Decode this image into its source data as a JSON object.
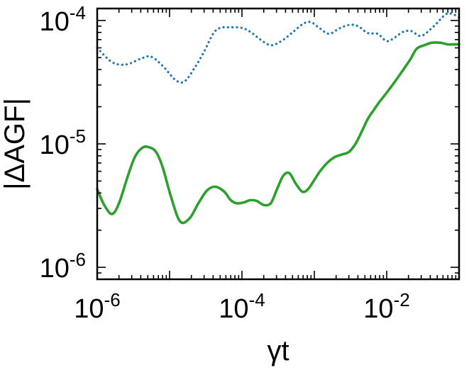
{
  "chart_data": {
    "type": "line",
    "title": "",
    "xlabel": "γt",
    "ylabel": "|ΔAGF|",
    "xscale": "log",
    "yscale": "log",
    "xlim": [
      1e-06,
      0.1
    ],
    "ylim": [
      8e-07,
      0.000125
    ],
    "grid": false,
    "legend": "none",
    "x_ticks": [
      {
        "value": 1e-06,
        "base": "10",
        "exp": "-6"
      },
      {
        "value": 0.0001,
        "base": "10",
        "exp": "-4"
      },
      {
        "value": 0.01,
        "base": "10",
        "exp": "-2"
      }
    ],
    "y_ticks": [
      {
        "value": 1e-06,
        "base": "10",
        "exp": "-6"
      },
      {
        "value": 1e-05,
        "base": "10",
        "exp": "-5"
      },
      {
        "value": 0.0001,
        "base": "10",
        "exp": "-4"
      }
    ],
    "series": [
      {
        "style": "dotted",
        "color": "#1f77b4",
        "x": [
          1e-06,
          1.6e-06,
          2.5e-06,
          4e-06,
          5.5e-06,
          8e-06,
          1.2e-05,
          1.6e-05,
          2.2e-05,
          3e-05,
          4e-05,
          5e-05,
          7e-05,
          0.0001,
          0.00013,
          0.00018,
          0.00025,
          0.00035,
          0.0005,
          0.0007,
          0.0009,
          0.0012,
          0.0016,
          0.0022,
          0.003,
          0.004,
          0.0055,
          0.0075,
          0.01,
          0.013,
          0.017,
          0.022,
          0.03,
          0.045,
          0.065,
          0.08,
          0.1
        ],
        "y": [
          6e-05,
          4.6e-05,
          4.4e-05,
          4.9e-05,
          5.1e-05,
          4.3e-05,
          3.3e-05,
          3.2e-05,
          4.1e-05,
          5.6e-05,
          7.8e-05,
          8.7e-05,
          8.8e-05,
          8.7e-05,
          8.1e-05,
          7e-05,
          6.3e-05,
          6.8e-05,
          8e-05,
          9.4e-05,
          9.7e-05,
          8.6e-05,
          7.8e-05,
          8.6e-05,
          9.2e-05,
          9e-05,
          7.9e-05,
          7.8e-05,
          6.8e-05,
          7.3e-05,
          8.1e-05,
          8.2e-05,
          7.5e-05,
          9e-05,
          0.000112,
          0.000113,
          0.000106
        ]
      },
      {
        "style": "solid",
        "color": "#2ca02c",
        "x": [
          1e-06,
          1.25e-06,
          1.6e-06,
          2e-06,
          2.6e-06,
          3.3e-06,
          4.2e-06,
          5.2e-06,
          6.5e-06,
          8e-06,
          1.05e-05,
          1.4e-05,
          1.9e-05,
          2.5e-05,
          3.3e-05,
          4.3e-05,
          5.7e-05,
          7e-05,
          8.5e-05,
          0.000105,
          0.00013,
          0.00016,
          0.0002,
          0.00025,
          0.0003,
          0.00037,
          0.00045,
          0.00055,
          0.00068,
          0.00082,
          0.001,
          0.0012,
          0.0015,
          0.0019,
          0.0024,
          0.003,
          0.0037,
          0.0045,
          0.0055,
          0.0067,
          0.008,
          0.0095,
          0.0115,
          0.014,
          0.017,
          0.021,
          0.026,
          0.033,
          0.042,
          0.055,
          0.07,
          0.085,
          0.1
        ],
        "y": [
          4.3e-06,
          3.2e-06,
          2.7e-06,
          3.3e-06,
          5.3e-06,
          7.8e-06,
          9.3e-06,
          9.4e-06,
          8.6e-06,
          6.5e-06,
          3.7e-06,
          2.35e-06,
          2.5e-06,
          3.3e-06,
          4.2e-06,
          4.5e-06,
          4.1e-06,
          3.5e-06,
          3.3e-06,
          3.35e-06,
          3.5e-06,
          3.45e-06,
          3.2e-06,
          3.3e-06,
          4.2e-06,
          5.5e-06,
          5.8e-06,
          4.8e-06,
          4.1e-06,
          4.3e-06,
          5.1e-06,
          6e-06,
          7e-06,
          7.8e-06,
          8.2e-06,
          8.6e-06,
          1e-05,
          1.25e-05,
          1.6e-05,
          1.9e-05,
          2.2e-05,
          2.5e-05,
          2.9e-05,
          3.4e-05,
          4e-05,
          4.8e-05,
          5.9e-05,
          6.3e-05,
          6.6e-05,
          6.6e-05,
          6.4e-05,
          6.4e-05,
          6.4e-05
        ]
      }
    ]
  }
}
